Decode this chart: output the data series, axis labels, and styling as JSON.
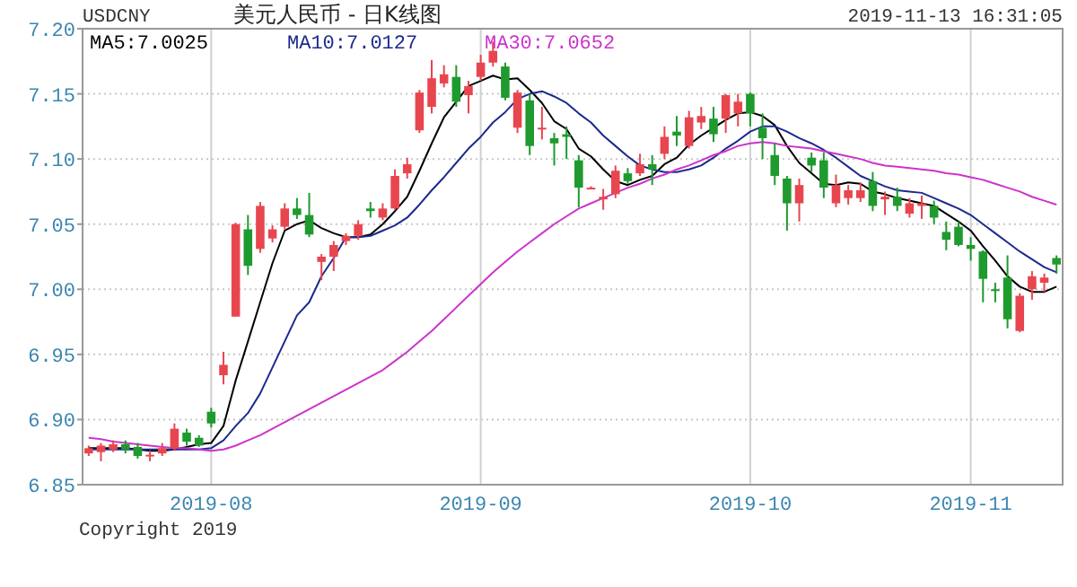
{
  "chart_data": {
    "type": "candlestick",
    "title": "美元人民币 - 日K线图",
    "annotations": [
      "USDCNY",
      "2019-11-13 16:31:05",
      "Copyright 2019"
    ],
    "categories": [
      null,
      null,
      null,
      null,
      null,
      null,
      null,
      null,
      null,
      null,
      "2019-08",
      null,
      null,
      null,
      null,
      null,
      null,
      null,
      null,
      null,
      null,
      null,
      null,
      null,
      null,
      null,
      null,
      null,
      null,
      null,
      null,
      null,
      "2019-09",
      null,
      null,
      null,
      null,
      null,
      null,
      null,
      null,
      null,
      null,
      null,
      null,
      null,
      null,
      null,
      null,
      null,
      null,
      null,
      null,
      null,
      "2019-10",
      null,
      null,
      null,
      null,
      null,
      null,
      null,
      null,
      null,
      null,
      null,
      null,
      null,
      null,
      null,
      null,
      null,
      "2019-11",
      null,
      null,
      null,
      null,
      null,
      null,
      null
    ],
    "ohlc": [
      [
        6.874,
        6.88,
        6.872,
        6.878
      ],
      [
        6.875,
        6.882,
        6.868,
        6.88
      ],
      [
        6.877,
        6.884,
        6.875,
        6.881
      ],
      [
        6.881,
        6.884,
        6.874,
        6.877
      ],
      [
        6.879,
        6.882,
        6.87,
        6.872
      ],
      [
        6.873,
        6.876,
        6.868,
        6.873
      ],
      [
        6.874,
        6.882,
        6.872,
        6.878
      ],
      [
        6.878,
        6.897,
        6.876,
        6.893
      ],
      [
        6.89,
        6.893,
        6.88,
        6.883
      ],
      [
        6.886,
        6.888,
        6.879,
        6.88
      ],
      [
        6.906,
        6.909,
        6.894,
        6.897
      ],
      [
        6.934,
        6.952,
        6.927,
        6.942
      ],
      [
        6.979,
        7.051,
        6.979,
        7.05
      ],
      [
        7.046,
        7.057,
        7.011,
        7.018
      ],
      [
        7.031,
        7.067,
        7.028,
        7.064
      ],
      [
        7.039,
        7.049,
        7.036,
        7.046
      ],
      [
        7.048,
        7.066,
        7.046,
        7.062
      ],
      [
        7.062,
        7.07,
        7.054,
        7.057
      ],
      [
        7.057,
        7.074,
        7.04,
        7.042
      ],
      [
        7.021,
        7.027,
        7.007,
        7.025
      ],
      [
        7.025,
        7.037,
        7.014,
        7.034
      ],
      [
        7.037,
        7.043,
        7.034,
        7.041
      ],
      [
        7.041,
        7.053,
        7.038,
        7.05
      ],
      [
        7.062,
        7.067,
        7.055,
        7.06
      ],
      [
        7.055,
        7.066,
        7.053,
        7.062
      ],
      [
        7.062,
        7.092,
        7.061,
        7.087
      ],
      [
        7.089,
        7.101,
        7.085,
        7.096
      ],
      [
        7.122,
        7.153,
        7.12,
        7.151
      ],
      [
        7.14,
        7.176,
        7.135,
        7.162
      ],
      [
        7.158,
        7.172,
        7.155,
        7.165
      ],
      [
        7.163,
        7.172,
        7.14,
        7.144
      ],
      [
        7.149,
        7.16,
        7.135,
        7.156
      ],
      [
        7.163,
        7.18,
        7.16,
        7.174
      ],
      [
        7.174,
        7.19,
        7.171,
        7.183
      ],
      [
        7.171,
        7.174,
        7.145,
        7.147
      ],
      [
        7.124,
        7.153,
        7.12,
        7.151
      ],
      [
        7.145,
        7.15,
        7.103,
        7.11
      ],
      [
        7.123,
        7.14,
        7.115,
        7.124
      ],
      [
        7.116,
        7.12,
        7.095,
        7.112
      ],
      [
        7.119,
        7.125,
        7.1,
        7.117
      ],
      [
        7.099,
        7.103,
        7.063,
        7.078
      ],
      [
        7.078,
        7.079,
        7.077,
        7.078
      ],
      [
        7.069,
        7.077,
        7.061,
        7.071
      ],
      [
        7.073,
        7.095,
        7.07,
        7.091
      ],
      [
        7.089,
        7.093,
        7.081,
        7.083
      ],
      [
        7.089,
        7.104,
        7.087,
        7.096
      ],
      [
        7.096,
        7.103,
        7.08,
        7.092
      ],
      [
        7.104,
        7.125,
        7.1,
        7.117
      ],
      [
        7.121,
        7.133,
        7.11,
        7.118
      ],
      [
        7.11,
        7.137,
        7.108,
        7.132
      ],
      [
        7.128,
        7.14,
        7.123,
        7.133
      ],
      [
        7.131,
        7.14,
        7.113,
        7.119
      ],
      [
        7.131,
        7.15,
        7.12,
        7.149
      ],
      [
        7.135,
        7.15,
        7.125,
        7.144
      ],
      [
        7.15,
        7.151,
        7.125,
        7.135
      ],
      [
        7.124,
        7.135,
        7.1,
        7.116
      ],
      [
        7.103,
        7.112,
        7.08,
        7.087
      ],
      [
        7.085,
        7.087,
        7.045,
        7.066
      ],
      [
        7.066,
        7.085,
        7.052,
        7.08
      ],
      [
        7.101,
        7.105,
        7.09,
        7.095
      ],
      [
        7.099,
        7.105,
        7.07,
        7.078
      ],
      [
        7.066,
        7.088,
        7.063,
        7.08
      ],
      [
        7.07,
        7.08,
        7.065,
        7.076
      ],
      [
        7.07,
        7.082,
        7.067,
        7.076
      ],
      [
        7.083,
        7.09,
        7.06,
        7.064
      ],
      [
        7.069,
        7.075,
        7.057,
        7.071
      ],
      [
        7.071,
        7.078,
        7.06,
        7.064
      ],
      [
        7.058,
        7.07,
        7.055,
        7.066
      ],
      [
        7.064,
        7.072,
        7.054,
        7.066
      ],
      [
        7.064,
        7.068,
        7.05,
        7.055
      ],
      [
        7.044,
        7.052,
        7.03,
        7.038
      ],
      [
        7.048,
        7.052,
        7.033,
        7.034
      ],
      [
        7.034,
        7.04,
        7.022,
        7.031
      ],
      [
        7.029,
        7.03,
        6.99,
        7.008
      ],
      [
        7.0,
        7.005,
        6.99,
        6.999
      ],
      [
        7.009,
        7.026,
        6.97,
        6.977
      ],
      [
        6.968,
        6.997,
        6.967,
        6.995
      ],
      [
        7.0,
        7.014,
        6.992,
        7.01
      ],
      [
        7.005,
        7.012,
        6.998,
        7.009
      ],
      [
        7.024,
        7.026,
        7.012,
        7.019
      ]
    ],
    "colors": [
      "#e8464f",
      "#e8464f",
      "#e8464f",
      "#1f9a2e",
      "#1f9a2e",
      "#e8464f",
      "#e8464f",
      "#e8464f",
      "#1f9a2e",
      "#1f9a2e",
      "#1f9a2e",
      "#e8464f",
      "#e8464f",
      "#1f9a2e",
      "#e8464f",
      "#e8464f",
      "#e8464f",
      "#1f9a2e",
      "#1f9a2e",
      "#e8464f",
      "#e8464f",
      "#e8464f",
      "#e8464f",
      "#1f9a2e",
      "#e8464f",
      "#e8464f",
      "#e8464f",
      "#e8464f",
      "#e8464f",
      "#e8464f",
      "#1f9a2e",
      "#e8464f",
      "#e8464f",
      "#e8464f",
      "#1f9a2e",
      "#e8464f",
      "#1f9a2e",
      "#e8464f",
      "#1f9a2e",
      "#1f9a2e",
      "#1f9a2e",
      "#e8464f",
      "#e8464f",
      "#e8464f",
      "#1f9a2e",
      "#e8464f",
      "#1f9a2e",
      "#e8464f",
      "#1f9a2e",
      "#e8464f",
      "#e8464f",
      "#1f9a2e",
      "#e8464f",
      "#e8464f",
      "#1f9a2e",
      "#1f9a2e",
      "#1f9a2e",
      "#1f9a2e",
      "#e8464f",
      "#1f9a2e",
      "#1f9a2e",
      "#e8464f",
      "#e8464f",
      "#e8464f",
      "#1f9a2e",
      "#e8464f",
      "#1f9a2e",
      "#e8464f",
      "#e8464f",
      "#1f9a2e",
      "#1f9a2e",
      "#1f9a2e",
      "#1f9a2e",
      "#1f9a2e",
      "#1f9a2e",
      "#1f9a2e",
      "#e8464f",
      "#e8464f",
      "#e8464f",
      "#1f9a2e"
    ],
    "series": [
      {
        "name": "MA5:7.0025",
        "type": "line",
        "color": "#000000",
        "values": [
          6.878,
          6.878,
          6.878,
          6.878,
          6.877,
          6.876,
          6.876,
          6.877,
          6.879,
          6.881,
          6.882,
          6.895,
          6.93,
          6.96,
          6.99,
          7.02,
          7.045,
          7.05,
          7.053,
          7.047,
          7.043,
          7.04,
          7.04,
          7.042,
          7.05,
          7.06,
          7.071,
          7.091,
          7.112,
          7.132,
          7.144,
          7.156,
          7.16,
          7.164,
          7.161,
          7.162,
          7.153,
          7.143,
          7.129,
          7.123,
          7.108,
          7.102,
          7.092,
          7.083,
          7.08,
          7.084,
          7.087,
          7.096,
          7.101,
          7.111,
          7.118,
          7.124,
          7.13,
          7.135,
          7.136,
          7.133,
          7.126,
          7.11,
          7.097,
          7.089,
          7.081,
          7.08,
          7.082,
          7.081,
          7.075,
          7.073,
          7.07,
          7.068,
          7.066,
          7.064,
          7.058,
          7.052,
          7.045,
          7.033,
          7.022,
          7.01,
          7.002,
          6.998,
          6.998,
          7.002
        ]
      },
      {
        "name": "MA10:7.0127",
        "type": "line",
        "color": "#1c2a8c",
        "values": [
          6.877,
          6.877,
          6.877,
          6.877,
          6.877,
          6.877,
          6.877,
          6.877,
          6.877,
          6.877,
          6.878,
          6.884,
          6.895,
          6.905,
          6.92,
          6.94,
          6.96,
          6.98,
          6.99,
          7.01,
          7.024,
          7.04,
          7.04,
          7.041,
          7.045,
          7.049,
          7.055,
          7.065,
          7.076,
          7.086,
          7.097,
          7.108,
          7.117,
          7.128,
          7.136,
          7.146,
          7.15,
          7.152,
          7.148,
          7.143,
          7.135,
          7.128,
          7.118,
          7.11,
          7.102,
          7.095,
          7.092,
          7.09,
          7.09,
          7.092,
          7.095,
          7.101,
          7.108,
          7.114,
          7.121,
          7.125,
          7.125,
          7.121,
          7.116,
          7.112,
          7.107,
          7.101,
          7.094,
          7.087,
          7.083,
          7.079,
          7.076,
          7.075,
          7.074,
          7.07,
          7.066,
          7.062,
          7.057,
          7.05,
          7.043,
          7.036,
          7.029,
          7.023,
          7.017,
          7.013
        ]
      },
      {
        "name": "MA30:7.0652",
        "type": "line",
        "color": "#cc33cc",
        "values": [
          6.886,
          6.885,
          6.883,
          6.882,
          6.881,
          6.88,
          6.879,
          6.878,
          6.878,
          6.877,
          6.876,
          6.877,
          6.88,
          6.884,
          6.888,
          6.893,
          6.898,
          6.903,
          6.908,
          6.913,
          6.918,
          6.923,
          6.928,
          6.933,
          6.938,
          6.945,
          6.952,
          6.96,
          6.968,
          6.977,
          6.986,
          6.995,
          7.004,
          7.013,
          7.021,
          7.029,
          7.036,
          7.043,
          7.05,
          7.056,
          7.062,
          7.066,
          7.07,
          7.074,
          7.078,
          7.081,
          7.085,
          7.088,
          7.092,
          7.095,
          7.099,
          7.103,
          7.106,
          7.11,
          7.112,
          7.113,
          7.112,
          7.11,
          7.109,
          7.108,
          7.106,
          7.104,
          7.102,
          7.1,
          7.097,
          7.095,
          7.094,
          7.093,
          7.092,
          7.091,
          7.089,
          7.088,
          7.086,
          7.084,
          7.081,
          7.078,
          7.075,
          7.071,
          7.068,
          7.065
        ]
      }
    ],
    "ylim": [
      6.85,
      7.2
    ],
    "yticks": [
      6.85,
      {
        "value": 6.9,
        "label": "6.90"
      },
      6.95,
      {
        "value": 7.0,
        "label": "7.00"
      },
      7.05,
      {
        "value": 7.1,
        "label": "7.10"
      },
      7.15,
      {
        "value": 7.2,
        "label": "7.20"
      }
    ],
    "grid": true,
    "legend": "top left"
  }
}
